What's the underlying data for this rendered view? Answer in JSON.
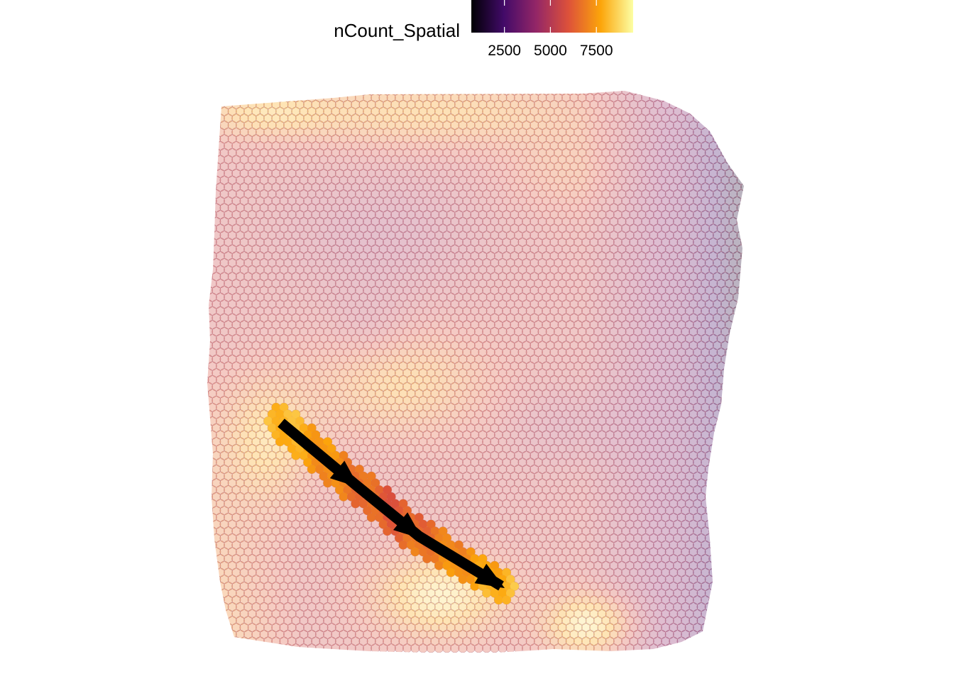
{
  "chart_data": {
    "type": "scatter",
    "subtype": "spatial-spot-map",
    "title": "",
    "xlabel": "",
    "ylabel": "",
    "axes_visible": false,
    "grid": false,
    "colorbar": {
      "title": "nCount_Spatial",
      "placement": "top",
      "palette": "inferno",
      "colors": [
        "#000004",
        "#420a68",
        "#932667",
        "#dd513a",
        "#fca50a",
        "#fcffa4"
      ],
      "min": 700,
      "max": 9500,
      "ticks": [
        {
          "value": 2500,
          "label": "2500"
        },
        {
          "value": 5000,
          "label": "5000"
        },
        {
          "value": 7500,
          "label": "7500"
        }
      ]
    },
    "background_spot_opacity": 0.3,
    "highlight_spot_opacity": 1.0,
    "trajectory": {
      "description_visible": false,
      "color": "#000000",
      "points": [
        {
          "x": 0.115,
          "y": 0.665
        },
        {
          "x": 0.268,
          "y": 0.412
        },
        {
          "x": 0.398,
          "y": 0.202
        },
        {
          "x": 0.566,
          "y": 0.0
        }
      ],
      "arrowheads_at_segment_ends": true
    }
  }
}
